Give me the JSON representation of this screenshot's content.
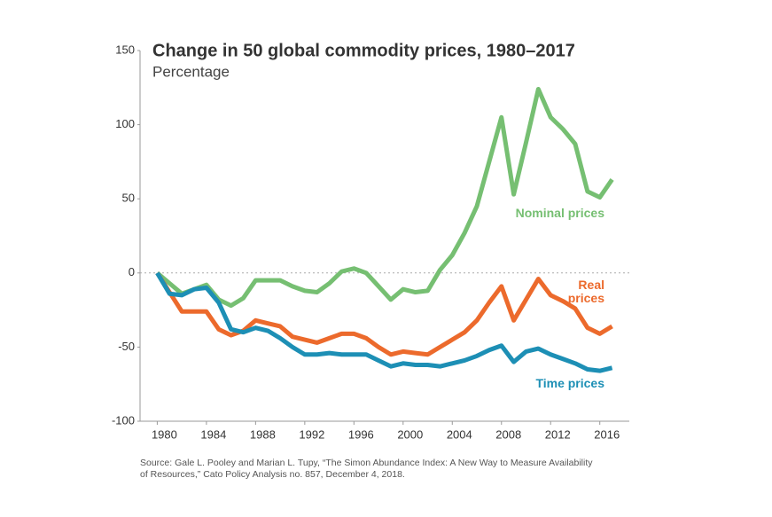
{
  "chart_data": {
    "type": "line",
    "title": "Change in 50 global commodity prices, 1980–2017",
    "subtitle": "Percentage",
    "source": "Source: Gale L. Pooley and Marian L. Tupy, “The Simon Abundance Index: A New Way to Measure Availability of Resources,” Cato Policy Analysis no. 857, December 4, 2018.",
    "x": [
      1980,
      1981,
      1982,
      1983,
      1984,
      1985,
      1986,
      1987,
      1988,
      1989,
      1990,
      1991,
      1992,
      1993,
      1994,
      1995,
      1996,
      1997,
      1998,
      1999,
      2000,
      2001,
      2002,
      2003,
      2004,
      2005,
      2006,
      2007,
      2008,
      2009,
      2010,
      2011,
      2012,
      2013,
      2014,
      2015,
      2016,
      2017
    ],
    "series": [
      {
        "name": "Nominal prices",
        "color": "#76bf72",
        "values": [
          0,
          -7,
          -14,
          -11,
          -8,
          -18,
          -22,
          -17,
          -5,
          -5,
          -5,
          -9,
          -12,
          -13,
          -7,
          1,
          3,
          0,
          -9,
          -18,
          -11,
          -13,
          -12,
          2,
          12,
          27,
          45,
          75,
          105,
          53,
          88,
          124,
          105,
          97,
          87,
          55,
          51,
          63
        ]
      },
      {
        "name": "Real prices",
        "color": "#ec6a2c",
        "values": [
          0,
          -13,
          -26,
          -26,
          -26,
          -38,
          -42,
          -39,
          -32,
          -34,
          -36,
          -43,
          -45,
          -47,
          -44,
          -41,
          -41,
          -44,
          -50,
          -55,
          -53,
          -54,
          -55,
          -50,
          -45,
          -40,
          -32,
          -20,
          -9,
          -32,
          -18,
          -4,
          -15,
          -19,
          -24,
          -37,
          -41,
          -36
        ]
      },
      {
        "name": "Time prices",
        "color": "#1d8fb5",
        "values": [
          0,
          -14,
          -15,
          -11,
          -10,
          -20,
          -38,
          -40,
          -37,
          -39,
          -44,
          -50,
          -55,
          -55,
          -54,
          -55,
          -55,
          -55,
          -59,
          -63,
          -61,
          -62,
          -62,
          -63,
          -61,
          -59,
          -56,
          -52,
          -49,
          -60,
          -53,
          -51,
          -55,
          -58,
          -61,
          -65,
          -66,
          -64
        ]
      }
    ],
    "xlim": [
      1978.6,
      2018.4
    ],
    "xticks": [
      1980,
      1984,
      1988,
      1992,
      1996,
      2000,
      2004,
      2008,
      2012,
      2016
    ],
    "ylim": [
      -100,
      150
    ],
    "yticks": [
      -100,
      -50,
      0,
      50,
      100,
      150
    ]
  }
}
